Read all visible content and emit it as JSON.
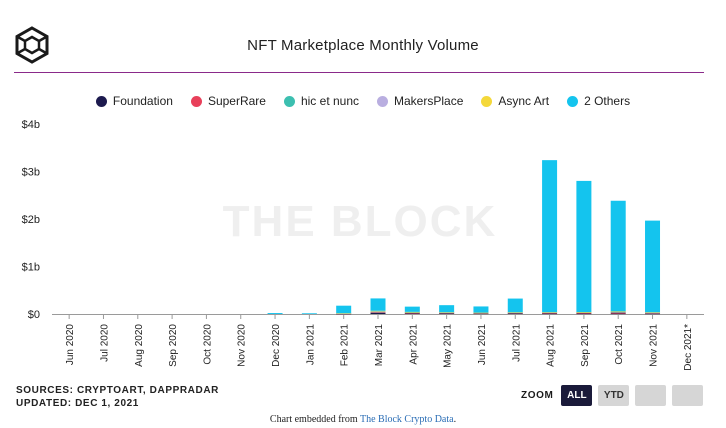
{
  "header": {
    "title": "NFT Marketplace Monthly Volume",
    "logo_icon": "the-block-cube-icon"
  },
  "watermark": "THE BLOCK",
  "legend": [
    {
      "label": "Foundation",
      "color": "#1c1a4e"
    },
    {
      "label": "SuperRare",
      "color": "#e8405a"
    },
    {
      "label": "hic et nunc",
      "color": "#3cbfb0"
    },
    {
      "label": "MakersPlace",
      "color": "#b9aee0"
    },
    {
      "label": "Async Art",
      "color": "#f4d83a"
    },
    {
      "label": "2 Others",
      "color": "#14c4ee"
    }
  ],
  "chart_data": {
    "type": "bar",
    "stacked": true,
    "title": "NFT Marketplace Monthly Volume",
    "categories": [
      "Jun 2020",
      "Jul 2020",
      "Aug 2020",
      "Sep 2020",
      "Oct 2020",
      "Nov 2020",
      "Dec 2020",
      "Jan 2021",
      "Feb 2021",
      "Mar 2021",
      "Apr 2021",
      "May 2021",
      "Jun 2021",
      "Jul 2021",
      "Aug 2021",
      "Sep 2021",
      "Oct 2021",
      "Nov 2021",
      "Dec 2021*"
    ],
    "y_ticks": [
      "$0",
      "$1b",
      "$2b",
      "$3b",
      "$4b"
    ],
    "ylim": [
      0,
      4
    ],
    "y_unit": "$b",
    "grid": false,
    "legend_position": "top-center",
    "series": [
      {
        "name": "Foundation",
        "color": "#1c1a4e",
        "values": [
          0,
          0,
          0,
          0,
          0,
          0,
          0,
          0,
          0.005,
          0.025,
          0.015,
          0.012,
          0.01,
          0.012,
          0.01,
          0.01,
          0.01,
          0.008,
          0
        ]
      },
      {
        "name": "SuperRare",
        "color": "#e8405a",
        "values": [
          0,
          0,
          0,
          0,
          0,
          0,
          0,
          0,
          0.004,
          0.015,
          0.01,
          0.01,
          0.008,
          0.01,
          0.012,
          0.015,
          0.02,
          0.012,
          0
        ]
      },
      {
        "name": "hic et nunc",
        "color": "#3cbfb0",
        "values": [
          0,
          0,
          0,
          0,
          0,
          0,
          0,
          0,
          0,
          0.01,
          0.01,
          0.008,
          0.006,
          0.008,
          0.01,
          0.01,
          0.015,
          0.01,
          0
        ]
      },
      {
        "name": "MakersPlace",
        "color": "#b9aee0",
        "values": [
          0,
          0,
          0,
          0,
          0,
          0,
          0,
          0,
          0.004,
          0.015,
          0.008,
          0.005,
          0.004,
          0.004,
          0.006,
          0.006,
          0.008,
          0.005,
          0
        ]
      },
      {
        "name": "Async Art",
        "color": "#f4d83a",
        "values": [
          0,
          0,
          0,
          0,
          0,
          0,
          0,
          0,
          0.002,
          0.003,
          0.002,
          0.001,
          0.001,
          0.001,
          0.001,
          0.001,
          0.001,
          0.001,
          0
        ]
      },
      {
        "name": "2 Others",
        "color": "#14c4ee",
        "values": [
          0,
          0,
          0,
          0,
          0,
          0,
          0.02,
          0.015,
          0.16,
          0.26,
          0.11,
          0.15,
          0.13,
          0.29,
          3.2,
          2.76,
          2.33,
          1.93,
          0
        ]
      }
    ]
  },
  "footer": {
    "sources": "SOURCES: CRYPTOART, DAPPRADAR",
    "updated": "UPDATED: DEC 1, 2021",
    "embed_prefix": "Chart embedded from",
    "embed_link": "The Block Crypto Data",
    "embed_suffix": "."
  },
  "zoom": {
    "label": "ZOOM",
    "all": "ALL",
    "ytd": "YTD"
  }
}
